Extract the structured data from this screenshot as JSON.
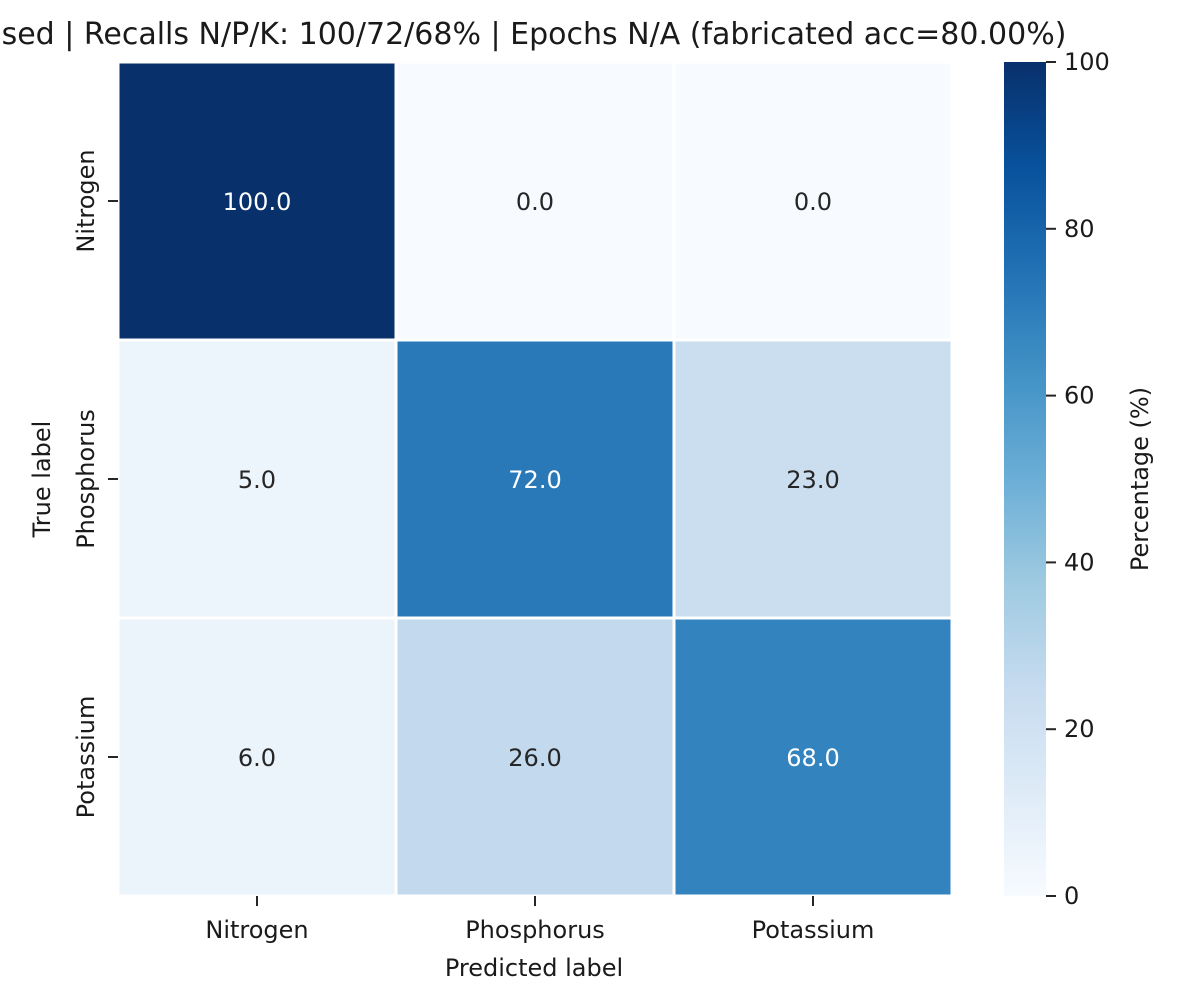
{
  "chart_data": {
    "type": "heatmap",
    "title": "sed | Recalls N/P/K: 100/72/68% | Epochs N/A (fabricated acc=80.00%)",
    "xlabel": "Predicted label",
    "ylabel": "True label",
    "x_categories": [
      "Nitrogen",
      "Phosphorus",
      "Potassium"
    ],
    "y_categories": [
      "Nitrogen",
      "Phosphorus",
      "Potassium"
    ],
    "values": [
      [
        100.0,
        0.0,
        0.0
      ],
      [
        5.0,
        72.0,
        23.0
      ],
      [
        6.0,
        26.0,
        68.0
      ]
    ],
    "value_format": "0.0",
    "colorbar": {
      "label": "Percentage (%)",
      "range": [
        0,
        100
      ],
      "ticks": [
        0,
        20,
        40,
        60,
        80,
        100
      ]
    },
    "colormap": "Blues",
    "colors": {
      "low": "#f7fbff",
      "high": "#08306b",
      "text_dark": "#262626",
      "text_light": "#ffffff",
      "cell_border": "#ffffff"
    }
  }
}
